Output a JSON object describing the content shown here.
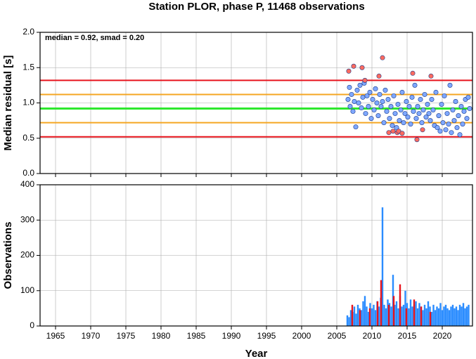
{
  "chart_data": [
    {
      "type": "scatter",
      "title": "Station PLOR, phase P, 11468 observations",
      "annotation": "median = 0.92, smad = 0.20",
      "ylabel": "Median residual [s]",
      "xlim": [
        1962.8,
        2024.3
      ],
      "ylim": [
        0,
        2
      ],
      "xticks": [
        1965,
        1970,
        1975,
        1980,
        1985,
        1990,
        1995,
        2000,
        2005,
        2010,
        2015,
        2020
      ],
      "yticks": [
        {
          "value": 0,
          "label": "0.0"
        },
        0.5,
        {
          "value": 1,
          "label": "1.0"
        },
        1.5,
        {
          "value": 2,
          "label": "2.0"
        }
      ],
      "grid": true,
      "hlines": [
        {
          "value": 1.32,
          "color": "#e8141c"
        },
        {
          "value": 1.12,
          "color": "#f5a623"
        },
        {
          "value": 0.92,
          "color": "#2ee82e"
        },
        {
          "value": 0.72,
          "color": "#f5a623"
        },
        {
          "value": 0.52,
          "color": "#e8141c"
        }
      ],
      "series": [
        {
          "color": "#7fa8ff",
          "x": [
            2006.6,
            2006.8,
            2006.9,
            2007.1,
            2007.3,
            2007.5,
            2007.7,
            2007.9,
            2008.1,
            2008.3,
            2008.5,
            2008.7,
            2008.9,
            2009.1,
            2009.3,
            2009.5,
            2009.7,
            2009.9,
            2010.1,
            2010.3,
            2010.5,
            2010.7,
            2010.9,
            2011.1,
            2011.3,
            2011.5,
            2011.7,
            2011.9,
            2012.1,
            2012.3,
            2012.5,
            2012.7,
            2012.9,
            2013.1,
            2013.3,
            2013.5,
            2013.7,
            2013.9,
            2014.1,
            2014.3,
            2014.5,
            2014.7,
            2014.9,
            2015.1,
            2015.3,
            2015.5,
            2015.7,
            2015.9,
            2016.1,
            2016.3,
            2016.5,
            2016.7,
            2016.9,
            2017.1,
            2017.3,
            2017.5,
            2017.7,
            2017.9,
            2018.1,
            2018.3,
            2018.5,
            2018.7,
            2018.9,
            2019.1,
            2019.3,
            2019.5,
            2019.7,
            2019.9,
            2020.1,
            2020.3,
            2020.5,
            2020.7,
            2020.9,
            2021.1,
            2021.3,
            2021.5,
            2021.7,
            2021.9,
            2022.1,
            2022.3,
            2022.5,
            2022.7,
            2022.9,
            2023.1,
            2023.3,
            2023.5,
            2023.7,
            2023.9
          ],
          "values": [
            1.05,
            1.22,
            0.95,
            1.12,
            0.88,
            1.02,
            0.66,
            1.18,
            1.0,
            1.25,
            0.93,
            1.08,
            1.28,
            0.85,
            1.1,
            0.95,
            1.15,
            0.78,
            1.05,
            0.9,
            1.2,
            1.0,
            0.82,
            1.12,
            0.95,
            1.02,
            0.72,
            1.18,
            0.88,
            1.05,
            0.78,
            0.95,
            0.68,
            1.1,
            0.85,
            0.65,
            0.98,
            0.75,
            0.9,
            1.15,
            0.72,
            0.85,
            1.02,
            0.8,
            0.95,
            0.7,
            1.08,
            0.88,
            1.25,
            0.78,
            0.95,
            0.85,
            1.05,
            0.72,
            0.9,
            1.12,
            0.8,
            0.98,
            0.85,
            0.75,
            1.05,
            0.9,
            0.68,
            1.15,
            0.65,
            0.82,
            0.6,
            0.98,
            0.72,
            1.1,
            0.62,
            0.85,
            0.7,
            1.25,
            0.58,
            0.9,
            0.75,
            1.02,
            0.65,
            0.82,
            0.55,
            0.95,
            0.7,
            0.88,
            1.05,
            0.78,
            1.08,
            0.92
          ]
        },
        {
          "color": "#ff6a5e",
          "x": [
            2006.7,
            2007.4,
            2008.6,
            2009.0,
            2011.0,
            2011.5,
            2012.4,
            2013.0,
            2013.6,
            2013.8,
            2014.3,
            2015.8,
            2016.4,
            2017.2,
            2018.4
          ],
          "values": [
            1.45,
            1.52,
            1.5,
            1.32,
            1.38,
            1.64,
            0.58,
            0.6,
            0.58,
            0.6,
            0.57,
            1.42,
            0.48,
            0.62,
            1.38
          ]
        }
      ]
    },
    {
      "type": "bar",
      "ylabel": "Observations",
      "xlabel": "Year",
      "xlim": [
        1962.8,
        2024.3
      ],
      "ylim": [
        0,
        400
      ],
      "xticks": [
        1965,
        1970,
        1975,
        1980,
        1985,
        1990,
        1995,
        2000,
        2005,
        2010,
        2015,
        2020
      ],
      "yticks": [
        0,
        100,
        200,
        300,
        400
      ],
      "grid": true,
      "series": [
        {
          "color": "#2a8cff",
          "x": [
            2006.5,
            2006.75,
            2007,
            2007.25,
            2007.5,
            2007.75,
            2008,
            2008.25,
            2008.5,
            2008.75,
            2009,
            2009.25,
            2009.5,
            2009.75,
            2010,
            2010.25,
            2010.5,
            2010.75,
            2011,
            2011.25,
            2011.5,
            2011.75,
            2012,
            2012.25,
            2012.5,
            2012.75,
            2013,
            2013.25,
            2013.5,
            2013.75,
            2014,
            2014.25,
            2014.5,
            2014.75,
            2015,
            2015.25,
            2015.5,
            2015.75,
            2016,
            2016.25,
            2016.5,
            2016.75,
            2017,
            2017.25,
            2017.5,
            2017.75,
            2018,
            2018.25,
            2018.5,
            2018.75,
            2019,
            2019.25,
            2019.5,
            2019.75,
            2020,
            2020.25,
            2020.5,
            2020.75,
            2021,
            2021.25,
            2021.5,
            2021.75,
            2022,
            2022.25,
            2022.5,
            2022.75,
            2023,
            2023.25,
            2023.5,
            2023.75
          ],
          "values": [
            30,
            25,
            45,
            40,
            55,
            35,
            60,
            50,
            45,
            70,
            85,
            55,
            40,
            65,
            50,
            60,
            45,
            70,
            55,
            80,
            336,
            60,
            50,
            75,
            65,
            55,
            145,
            60,
            70,
            50,
            85,
            55,
            60,
            100,
            65,
            50,
            75,
            55,
            60,
            70,
            50,
            65,
            55,
            45,
            60,
            50,
            70,
            55,
            40,
            60,
            45,
            55,
            50,
            65,
            45,
            55,
            60,
            50,
            45,
            55,
            60,
            50,
            55,
            45,
            60,
            55,
            65,
            50,
            55,
            60
          ]
        },
        {
          "color": "#e8141c",
          "x": [
            2007.2,
            2008.3,
            2009.7,
            2010.8,
            2011.3,
            2012.4,
            2013.1,
            2014.0,
            2014.9,
            2016.0,
            2017.0,
            2018.3
          ],
          "values": [
            60,
            45,
            50,
            70,
            130,
            60,
            85,
            118,
            50,
            75,
            55,
            40
          ]
        }
      ]
    }
  ]
}
